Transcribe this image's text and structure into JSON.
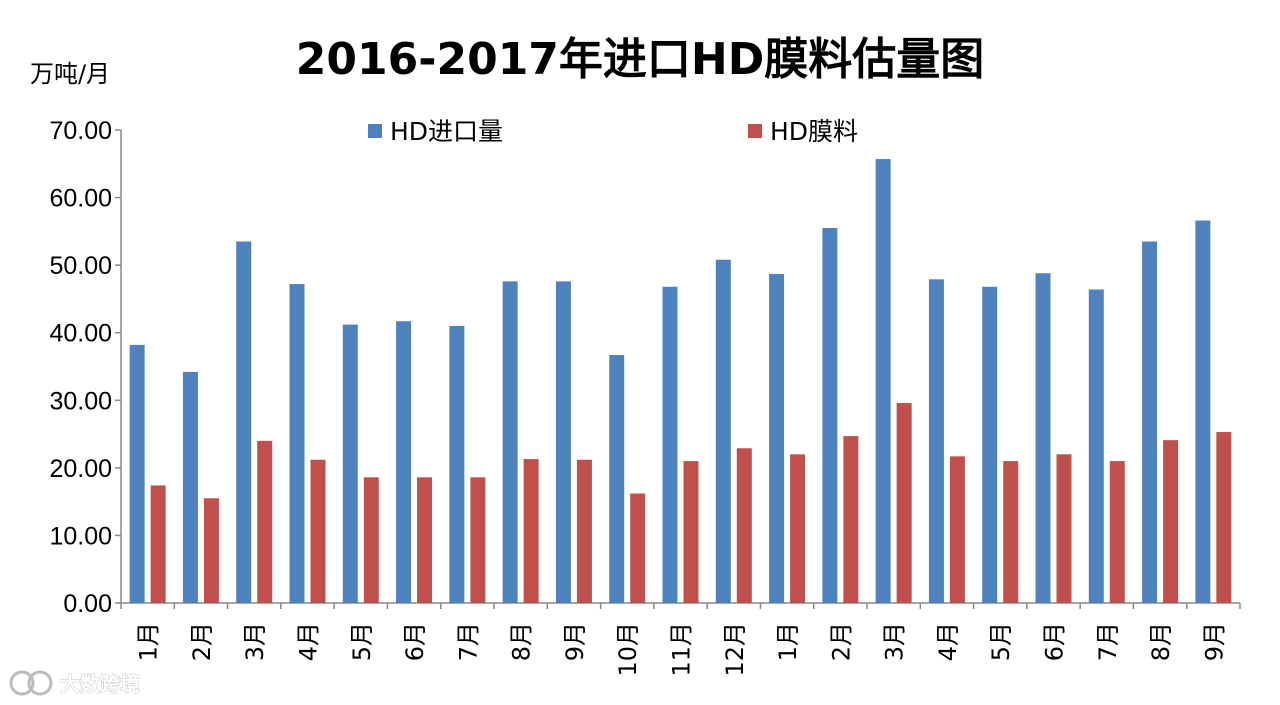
{
  "chart_data": {
    "type": "bar",
    "title": "2016-2017年进口HD膜料估量图",
    "ylabel": "万吨/月",
    "xlabel": "",
    "ylim": [
      0,
      70
    ],
    "yticks": [
      "0.00",
      "10.00",
      "20.00",
      "30.00",
      "40.00",
      "50.00",
      "60.00",
      "70.00"
    ],
    "ytick_values": [
      0,
      10,
      20,
      30,
      40,
      50,
      60,
      70
    ],
    "categories": [
      "1月",
      "2月",
      "3月",
      "4月",
      "5月",
      "6月",
      "7月",
      "8月",
      "9月",
      "10月",
      "11月",
      "12月",
      "1月",
      "2月",
      "3月",
      "4月",
      "5月",
      "6月",
      "7月",
      "8月",
      "9月"
    ],
    "series": [
      {
        "name": "HD进口量",
        "color": "#4f81bd",
        "values": [
          38.2,
          34.2,
          53.5,
          47.2,
          41.2,
          41.7,
          41.0,
          47.6,
          47.6,
          36.7,
          46.8,
          50.8,
          48.7,
          55.5,
          65.7,
          47.9,
          46.8,
          48.8,
          46.4,
          53.5,
          56.6
        ]
      },
      {
        "name": "HD膜料",
        "color": "#c0504d",
        "values": [
          17.4,
          15.5,
          24.0,
          21.2,
          18.6,
          18.6,
          18.6,
          21.3,
          21.2,
          16.2,
          21.0,
          22.9,
          22.0,
          24.7,
          29.6,
          21.7,
          21.0,
          22.0,
          21.0,
          24.1,
          25.3
        ]
      }
    ],
    "grid": false,
    "legend_position": "top-center"
  },
  "watermark": {
    "text": "大数跨境",
    "icon": "brand-logo-icon"
  }
}
